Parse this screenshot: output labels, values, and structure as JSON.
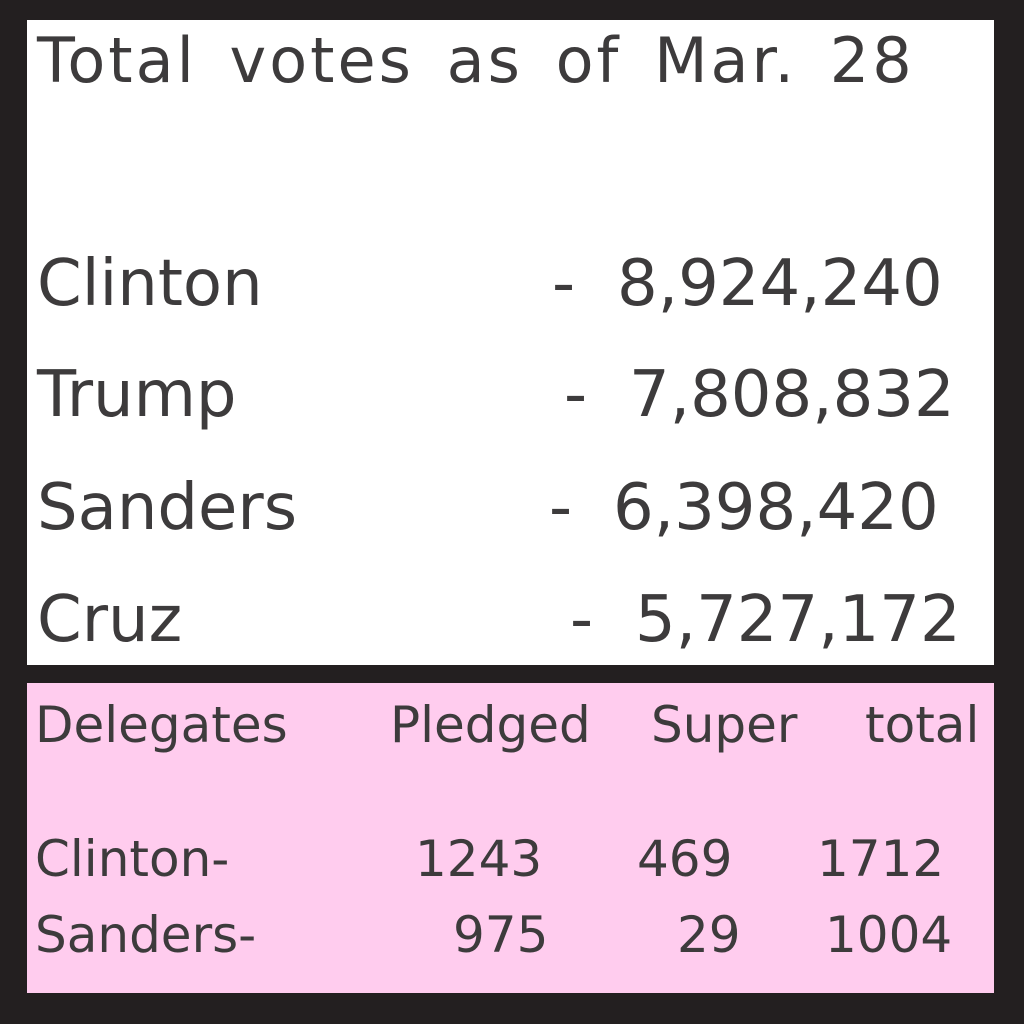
{
  "votes": {
    "title": "Total votes as of Mar. 28",
    "rows": [
      {
        "name": "Clinton",
        "dash": "-",
        "count": "8,924,240"
      },
      {
        "name": "Trump",
        "dash": "-",
        "count": "7,808,832"
      },
      {
        "name": "Sanders",
        "dash": "-",
        "count": "6,398,420"
      },
      {
        "name": "Cruz",
        "dash": "-",
        "count": "5,727,172"
      }
    ]
  },
  "delegates": {
    "headers": {
      "label": "Delegates",
      "pledged": "Pledged",
      "super": "Super",
      "total": "total"
    },
    "rows": [
      {
        "name": "Clinton-",
        "pledged": "1243",
        "super": "469",
        "total": "1712"
      },
      {
        "name": "Sanders-",
        "pledged": "975",
        "super": "29",
        "total": "1004"
      }
    ]
  },
  "colors": {
    "background": "#231f20",
    "votes_panel": "#ffffff",
    "delegates_panel": "#ffccee",
    "text": "#3d3b3c"
  }
}
